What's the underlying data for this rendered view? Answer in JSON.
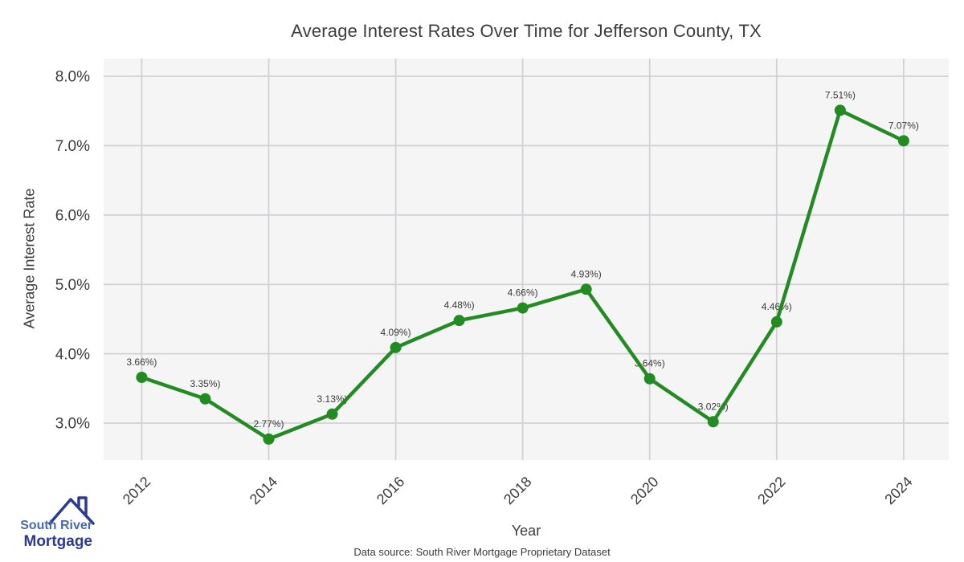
{
  "page": {
    "footer_source": "Data source: South River Mortgage Proprietary Dataset"
  },
  "logo": {
    "line1": "South River",
    "line2": "Mortgage",
    "color_primary": "#4a69b3",
    "color_secondary": "#2d3a8f"
  },
  "chart_data": {
    "type": "line",
    "title": "Average Interest Rates Over Time for Jefferson County, TX",
    "xlabel": "Year",
    "ylabel": "Average Interest Rate",
    "x": [
      2012,
      2013,
      2014,
      2015,
      2016,
      2017,
      2018,
      2019,
      2020,
      2021,
      2022,
      2023,
      2024
    ],
    "values": [
      3.66,
      3.35,
      2.77,
      3.13,
      4.09,
      4.48,
      4.66,
      4.93,
      3.64,
      3.02,
      4.46,
      7.51,
      7.07
    ],
    "point_labels": [
      "3.66%)",
      "3.35%)",
      "2.77%)",
      "3.13%)",
      "4.09%)",
      "4.48%)",
      "4.66%)",
      "4.93%)",
      "3.64%)",
      "3.02%)",
      "4.46%)",
      "7.51%)",
      "7.07%)"
    ],
    "x_ticks": [
      2012,
      2014,
      2016,
      2018,
      2020,
      2022,
      2024
    ],
    "x_tick_labels": [
      "2012",
      "2014",
      "2016",
      "2018",
      "2020",
      "2022",
      "2024"
    ],
    "y_ticks": [
      3,
      4,
      5,
      6,
      7,
      8
    ],
    "y_tick_labels": [
      "3.0%",
      "4.0%",
      "5.0%",
      "6.0%",
      "7.0%",
      "8.0%"
    ],
    "xlim": [
      2011.4,
      2024.71
    ],
    "ylim": [
      2.468,
      8.255
    ],
    "grid": true,
    "legend": false,
    "line_color": "#228B22",
    "marker_color": "#228B22",
    "plot_bg_color": "#f5f5f6",
    "grid_color": "#d2d2d4",
    "tick_label_color": "#3c3c3c",
    "point_label_color": "#3a3a3a"
  }
}
